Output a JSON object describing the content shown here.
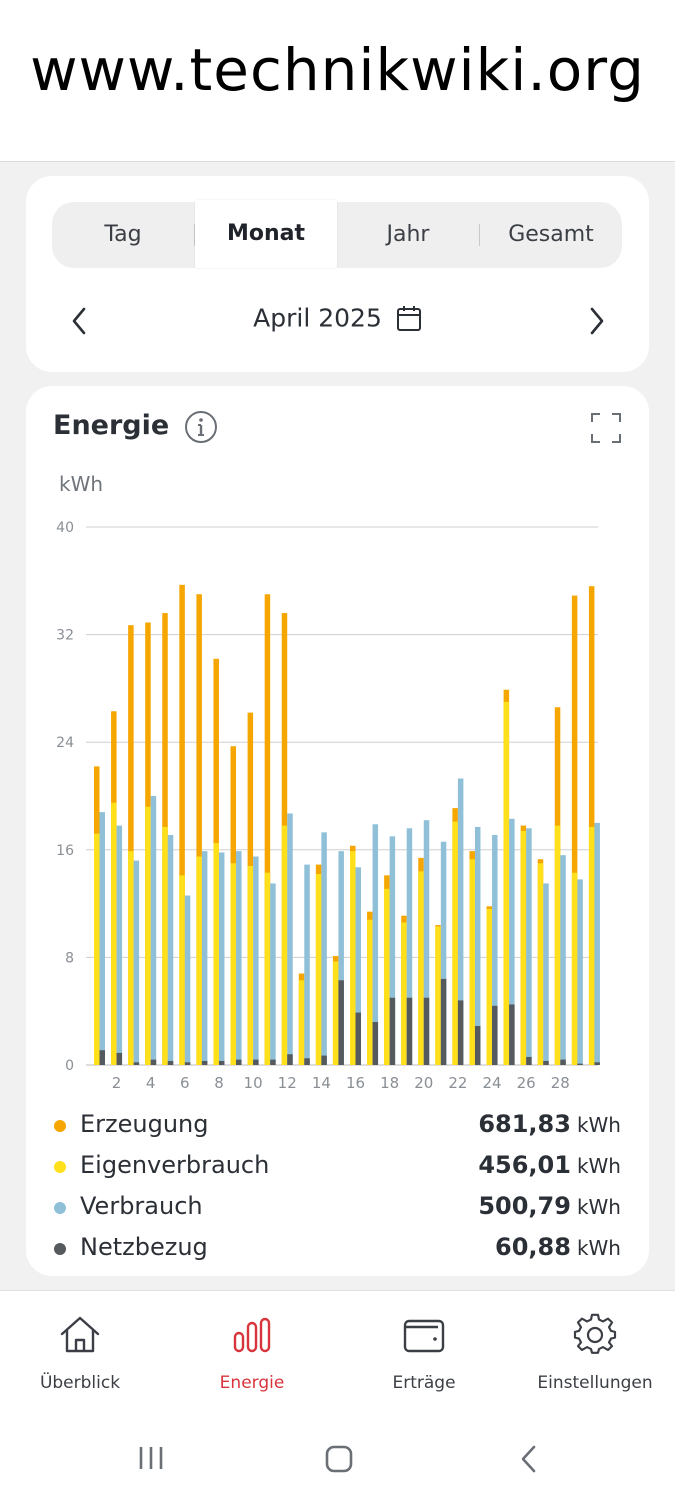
{
  "banner": {
    "text": "www.technikwiki.org"
  },
  "tabs": [
    {
      "label": "Tag",
      "active": false
    },
    {
      "label": "Monat",
      "active": true
    },
    {
      "label": "Jahr",
      "active": false
    },
    {
      "label": "Gesamt",
      "active": false
    }
  ],
  "period": {
    "label": "April 2025",
    "prev_icon": "chevron-left-icon",
    "next_icon": "chevron-right-icon",
    "calendar_icon": "calendar-icon"
  },
  "energy": {
    "title": "Energie",
    "info_icon": "info-icon",
    "expand_icon": "expand-icon",
    "unit": "kWh"
  },
  "colors": {
    "erzeugung": "#f5a600",
    "eigenverbrauch": "#ffe01a",
    "verbrauch": "#8fc0d8",
    "netzbezug": "#555a5f",
    "active_nav": "#d8343c"
  },
  "chart_data": {
    "type": "bar",
    "ylabel": "kWh",
    "ylim": [
      0,
      40
    ],
    "yticks": [
      0,
      8,
      16,
      24,
      32,
      40
    ],
    "xticks": [
      "2",
      "4",
      "6",
      "8",
      "10",
      "12",
      "14",
      "16",
      "18",
      "20",
      "22",
      "24",
      "26",
      "28"
    ],
    "days": [
      1,
      2,
      3,
      4,
      5,
      6,
      7,
      8,
      9,
      10,
      11,
      12,
      13,
      14,
      15,
      16,
      17,
      18,
      19,
      20,
      21,
      22,
      23,
      24,
      25,
      26,
      27,
      28,
      29,
      30
    ],
    "series": [
      {
        "name": "Erzeugung",
        "values": [
          22.2,
          26.3,
          32.7,
          32.9,
          33.6,
          35.7,
          35.0,
          30.2,
          23.7,
          26.2,
          35.0,
          33.6,
          6.8,
          14.9,
          8.1,
          16.3,
          11.4,
          14.1,
          11.1,
          15.4,
          10.4,
          19.1,
          15.9,
          11.8,
          27.9,
          17.8,
          15.3,
          26.6,
          34.9,
          35.6
        ]
      },
      {
        "name": "Eigenverbrauch",
        "values": [
          17.2,
          19.5,
          15.9,
          19.2,
          17.7,
          14.1,
          15.5,
          16.5,
          15.0,
          14.8,
          14.3,
          17.8,
          6.3,
          14.2,
          7.7,
          15.9,
          10.8,
          13.1,
          10.6,
          14.4,
          10.3,
          18.1,
          15.3,
          11.6,
          27.0,
          17.4,
          15.0,
          17.8,
          14.3,
          17.7
        ]
      },
      {
        "name": "Verbrauch",
        "values": [
          18.8,
          17.8,
          15.2,
          20.0,
          17.1,
          12.6,
          15.9,
          15.8,
          15.9,
          15.5,
          13.5,
          18.7,
          14.9,
          17.3,
          15.9,
          14.7,
          17.9,
          17.0,
          17.6,
          18.2,
          16.6,
          21.3,
          17.7,
          17.1,
          18.3,
          17.6,
          13.5,
          15.6,
          13.8,
          18.0
        ]
      },
      {
        "name": "Netzbezug",
        "values": [
          1.1,
          0.9,
          0.2,
          0.4,
          0.3,
          0.2,
          0.3,
          0.3,
          0.4,
          0.4,
          0.4,
          0.8,
          0.5,
          0.7,
          6.3,
          3.9,
          3.2,
          5.0,
          5.0,
          5.0,
          6.4,
          4.8,
          2.9,
          4.4,
          4.5,
          0.6,
          0.3,
          0.4,
          0.1,
          0.2
        ]
      }
    ]
  },
  "legend": [
    {
      "name": "Erzeugung",
      "value": "681,83",
      "unit": "kWh",
      "color": "#f5a600"
    },
    {
      "name": "Eigenverbrauch",
      "value": "456,01",
      "unit": "kWh",
      "color": "#ffe01a"
    },
    {
      "name": "Verbrauch",
      "value": "500,79",
      "unit": "kWh",
      "color": "#8fc0d8"
    },
    {
      "name": "Netzbezug",
      "value": "60,88",
      "unit": "kWh",
      "color": "#555a5f"
    }
  ],
  "bottom_nav": [
    {
      "label": "Überblick",
      "icon": "home-icon",
      "active": false
    },
    {
      "label": "Energie",
      "icon": "bar-chart-icon",
      "active": true
    },
    {
      "label": "Erträge",
      "icon": "wallet-icon",
      "active": false
    },
    {
      "label": "Einstellungen",
      "icon": "gear-icon",
      "active": false
    }
  ],
  "system_bar": {
    "recent_icon": "recent-apps-icon",
    "home_icon": "home-button-icon",
    "back_icon": "back-icon"
  }
}
